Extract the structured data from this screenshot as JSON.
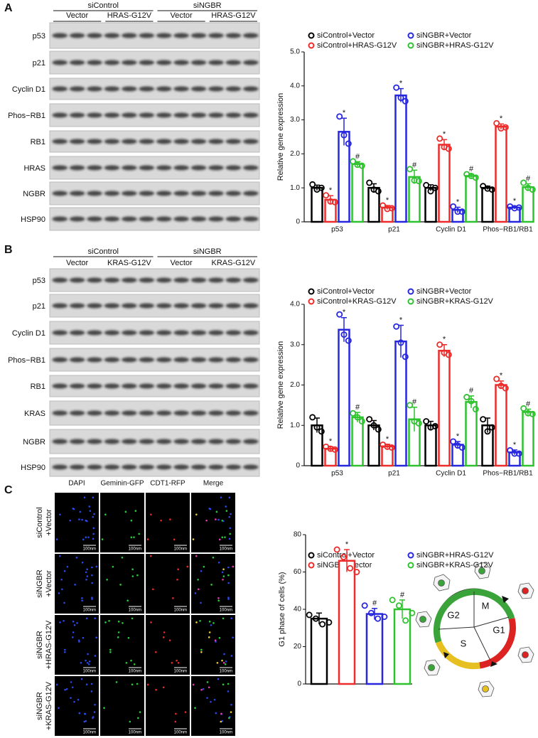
{
  "panels": [
    "A",
    "B",
    "C"
  ],
  "blots": [
    {
      "header": [
        "siControl",
        "siNGBR"
      ],
      "groups": [
        "Vector",
        "HRAS-G12V",
        "Vector",
        "HRAS-G12V"
      ],
      "rows": [
        "p53",
        "p21",
        "Cyclin D1",
        "Phos−RB1",
        "RB1",
        "HRAS",
        "NGBR",
        "HSP90"
      ]
    },
    {
      "header": [
        "siControl",
        "siNGBR"
      ],
      "groups": [
        "Vector",
        "KRAS-G12V",
        "Vector",
        "KRAS-G12V"
      ],
      "rows": [
        "p53",
        "p21",
        "Cyclin D1",
        "Phos−RB1",
        "RB1",
        "KRAS",
        "NGBR",
        "HSP90"
      ]
    }
  ],
  "microscopy": {
    "channels": [
      "DAPI",
      "Geminin-GFP",
      "CDT1-RFP",
      "Merge"
    ],
    "conditions": [
      [
        "siControl",
        "+Vector"
      ],
      [
        "siNGBR",
        "+Vector"
      ],
      [
        "siNGBR",
        "+HRAS-G12V"
      ],
      [
        "siNGBR",
        "+KRAS-G12V"
      ]
    ],
    "scale_bar": "100nm"
  },
  "diagram": {
    "phases": [
      "G2",
      "M",
      "G1",
      "S"
    ]
  },
  "chart_data": [
    {
      "type": "bar",
      "ylabel": "Relative gene expression",
      "categories": [
        "p53",
        "p21",
        "Cyclin D1",
        "Phos−RB1/RB1"
      ],
      "ylim": [
        0,
        5
      ],
      "yticks": [
        0,
        {
          "value": 1,
          "label": "1.0"
        },
        {
          "value": 2,
          "label": "2.0"
        },
        {
          "value": 3,
          "label": "3.0"
        },
        {
          "value": 4,
          "label": "4.0"
        },
        {
          "value": 5,
          "label": "5.0"
        }
      ],
      "series": [
        {
          "name": "siControl+Vector",
          "color": "#000000",
          "values": [
            1.0,
            1.0,
            1.0,
            1.0
          ],
          "errors": [
            0.08,
            0.12,
            0.09,
            0.05
          ],
          "points": [
            [
              1.1,
              0.95,
              1.0
            ],
            [
              1.15,
              0.95,
              0.9
            ],
            [
              1.08,
              0.9,
              1.0
            ],
            [
              1.05,
              0.98,
              0.95
            ]
          ],
          "markers": [
            null,
            null,
            null,
            null
          ]
        },
        {
          "name": "siControl+HRAS-G12V",
          "color": "#ee2b2b",
          "values": [
            0.65,
            0.42,
            2.27,
            2.8
          ],
          "errors": [
            0.12,
            0.06,
            0.15,
            0.08
          ],
          "points": [
            [
              0.78,
              0.6,
              0.58
            ],
            [
              0.48,
              0.38,
              0.4
            ],
            [
              2.45,
              2.2,
              2.15
            ],
            [
              2.9,
              2.75,
              2.78
            ]
          ],
          "markers": [
            "*",
            "*",
            "*",
            "*"
          ]
        },
        {
          "name": "siNGBR+Vector",
          "color": "#2727e0",
          "values": [
            2.65,
            3.72,
            0.35,
            0.42
          ],
          "errors": [
            0.4,
            0.2,
            0.08,
            0.04
          ],
          "points": [
            [
              3.1,
              2.55,
              2.3
            ],
            [
              3.95,
              3.65,
              3.55
            ],
            [
              0.45,
              0.3,
              0.3
            ],
            [
              0.45,
              0.4,
              0.42
            ]
          ],
          "markers": [
            "*",
            "*",
            "*",
            "*"
          ]
        },
        {
          "name": "siNGBR+HRAS-G12V",
          "color": "#2ec32e",
          "values": [
            1.7,
            1.32,
            1.35,
            1.02
          ],
          "errors": [
            0.07,
            0.2,
            0.05,
            0.1
          ],
          "points": [
            [
              1.78,
              1.68,
              1.65
            ],
            [
              1.55,
              1.22,
              1.2
            ],
            [
              1.4,
              1.35,
              1.3
            ],
            [
              1.15,
              1.0,
              0.95
            ]
          ],
          "markers": [
            "#",
            "#",
            "#",
            "#"
          ]
        }
      ]
    },
    {
      "type": "bar",
      "ylabel": "Relative gene expression",
      "categories": [
        "p53",
        "p21",
        "Cyclin D1",
        "Phos−RB1/RB1"
      ],
      "ylim": [
        0,
        4
      ],
      "yticks": [
        0,
        {
          "value": 1,
          "label": "1.0"
        },
        {
          "value": 2,
          "label": "2.0"
        },
        {
          "value": 3,
          "label": "3.0"
        },
        {
          "value": 4,
          "label": "4.0"
        }
      ],
      "series": [
        {
          "name": "siControl+Vector",
          "color": "#000000",
          "values": [
            1.0,
            1.0,
            1.0,
            1.0
          ],
          "errors": [
            0.18,
            0.12,
            0.1,
            0.18
          ],
          "points": [
            [
              1.2,
              0.95,
              0.85
            ],
            [
              1.15,
              1.0,
              0.9
            ],
            [
              1.1,
              0.95,
              0.98
            ],
            [
              1.15,
              0.85,
              0.95
            ]
          ],
          "markers": [
            null,
            null,
            null,
            null
          ]
        },
        {
          "name": "siControl+KRAS-G12V",
          "color": "#ee2b2b",
          "values": [
            0.42,
            0.48,
            2.85,
            2.0
          ],
          "errors": [
            0.05,
            0.05,
            0.15,
            0.1
          ],
          "points": [
            [
              0.47,
              0.42,
              0.4
            ],
            [
              0.52,
              0.47,
              0.45
            ],
            [
              3.0,
              2.8,
              2.75
            ],
            [
              2.15,
              1.98,
              1.92
            ]
          ],
          "markers": [
            "*",
            "*",
            "*",
            "*"
          ]
        },
        {
          "name": "siNGBR+Vector",
          "color": "#2727e0",
          "values": [
            3.37,
            3.08,
            0.52,
            0.33
          ],
          "errors": [
            0.3,
            0.4,
            0.08,
            0.06
          ],
          "points": [
            [
              3.75,
              3.25,
              3.1
            ],
            [
              3.45,
              3.05,
              2.7
            ],
            [
              0.6,
              0.5,
              0.45
            ],
            [
              0.38,
              0.3,
              0.3
            ]
          ],
          "markers": [
            "*",
            "*",
            "*",
            "*"
          ]
        },
        {
          "name": "siNGBR+KRAS-G12V",
          "color": "#2ec32e",
          "values": [
            1.2,
            1.15,
            1.58,
            1.33
          ],
          "errors": [
            0.12,
            0.3,
            0.15,
            0.07
          ],
          "points": [
            [
              1.3,
              1.2,
              1.1
            ],
            [
              1.5,
              1.1,
              1.05
            ],
            [
              1.7,
              1.6,
              1.4
            ],
            [
              1.42,
              1.3,
              1.28
            ]
          ],
          "markers": [
            "#",
            "#",
            "#",
            "#"
          ]
        }
      ]
    },
    {
      "type": "bar",
      "ylabel": "G1 phase of cells (%)",
      "categories": [
        null
      ],
      "ylim": [
        0,
        80
      ],
      "yticks": [
        0,
        20,
        40,
        60,
        80
      ],
      "series": [
        {
          "name": "siControl+Vector",
          "color": "#000000",
          "values": [
            35
          ],
          "errors": [
            3
          ],
          "points": [
            [
              37,
              35,
              32,
              33
            ]
          ],
          "markers": [
            null
          ]
        },
        {
          "name": "siNGBR+Vector",
          "color": "#ee2b2b",
          "values": [
            66
          ],
          "errors": [
            6
          ],
          "points": [
            [
              72,
              68,
              62,
              60
            ]
          ],
          "markers": [
            "*"
          ]
        },
        {
          "name": "siNGBR+HRAS-G12V",
          "color": "#2727e0",
          "values": [
            37.5
          ],
          "errors": [
            3
          ],
          "points": [
            [
              42,
              38,
              35,
              36
            ]
          ],
          "markers": [
            "#"
          ]
        },
        {
          "name": "siNGBR+KRAS-G12V",
          "color": "#2ec32e",
          "values": [
            40
          ],
          "errors": [
            5
          ],
          "points": [
            [
              45,
              42,
              34,
              38
            ]
          ],
          "markers": [
            "#"
          ]
        }
      ]
    }
  ]
}
